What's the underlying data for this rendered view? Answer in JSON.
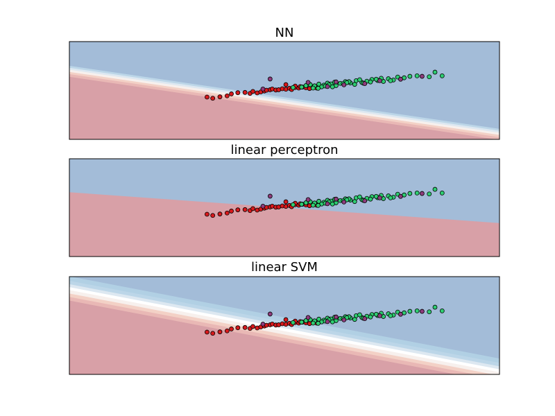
{
  "chart_data": [
    {
      "type": "scatter",
      "title": "NN",
      "xlabel": "",
      "ylabel": "",
      "xlim": [
        -2.0,
        4.0
      ],
      "ylim": [
        -2.0,
        2.0
      ],
      "grid": false,
      "ticks": false,
      "background": {
        "kind": "decision-surface",
        "boundary": {
          "slope": -0.43,
          "intercept": 0.05
        },
        "band_offsets": [
          -0.35,
          -0.24,
          -0.15,
          -0.06,
          0.02,
          0.1,
          0.19,
          1.6
        ],
        "band_colors": [
          "#d8a0a7",
          "#e9b8b5",
          "#f3d1c6",
          "#f7f0ed",
          "#dde8f1",
          "#bcd6e8",
          "#a3bcd8",
          "#a3bcd8"
        ]
      },
      "series": [
        {
          "color": "#d7191c",
          "x": [
            -0.08,
            0.0,
            0.1,
            0.2,
            0.26,
            0.35,
            0.45,
            0.52,
            0.56,
            0.62,
            0.67,
            0.72,
            0.75,
            0.8,
            0.83,
            0.88,
            0.92,
            0.97,
            1.02,
            1.07,
            1.1,
            1.15,
            1.2,
            1.25,
            1.3,
            1.35,
            1.4,
            1.45,
            1.02,
            1.15,
            1.22
          ],
          "y": [
            -0.27,
            -0.32,
            -0.26,
            -0.22,
            -0.14,
            -0.09,
            -0.08,
            -0.12,
            -0.04,
            -0.1,
            -0.06,
            -0.02,
            0.01,
            0.03,
            0.06,
            0.02,
            0.03,
            0.07,
            0.05,
            0.09,
            0.04,
            0.12,
            0.1,
            0.14,
            0.11,
            0.08,
            0.13,
            0.1,
            0.24,
            0.18,
            0.16
          ]
        },
        {
          "color": "#2ecc71",
          "x": [
            1.12,
            1.24,
            1.3,
            1.36,
            1.42,
            1.48,
            1.55,
            1.6,
            1.65,
            1.7,
            1.78,
            1.85,
            1.92,
            2.0,
            2.08,
            2.15,
            2.22,
            2.3,
            2.38,
            2.45,
            2.52,
            2.58,
            2.67,
            2.75,
            2.85,
            3.02,
            3.2,
            1.4,
            1.52,
            1.62,
            1.72,
            1.82,
            1.9,
            1.98,
            2.1,
            2.2,
            2.28,
            1.47,
            1.57,
            1.67,
            1.87,
            2.05,
            2.35,
            2.48,
            3.1
          ],
          "y": [
            0.12,
            0.14,
            0.2,
            0.24,
            0.19,
            0.26,
            0.22,
            0.3,
            0.27,
            0.34,
            0.29,
            0.36,
            0.31,
            0.4,
            0.33,
            0.38,
            0.45,
            0.41,
            0.37,
            0.48,
            0.43,
            0.55,
            0.52,
            0.58,
            0.6,
            0.56,
            0.6,
            0.1,
            0.15,
            0.23,
            0.2,
            0.28,
            0.36,
            0.25,
            0.3,
            0.35,
            0.46,
            0.09,
            0.18,
            0.15,
            0.32,
            0.44,
            0.5,
            0.4,
            0.75
          ]
        },
        {
          "color": "#8e3b7c",
          "x": [
            0.8,
            1.33,
            1.6,
            1.72,
            1.83,
            2.12,
            2.33,
            2.62,
            2.92,
            0.7
          ],
          "y": [
            0.47,
            0.33,
            0.16,
            0.35,
            0.23,
            0.28,
            0.4,
            0.46,
            0.58,
            0.06
          ]
        }
      ]
    },
    {
      "type": "scatter",
      "title": "linear perceptron",
      "xlabel": "",
      "ylabel": "",
      "xlim": [
        -2.0,
        4.0
      ],
      "ylim": [
        -2.0,
        2.0
      ],
      "grid": false,
      "ticks": false,
      "background": {
        "kind": "decision-surface",
        "boundary": {
          "slope": -0.21,
          "intercept": 0.21
        },
        "band_offsets": [
          0.0,
          1.6
        ],
        "band_colors": [
          "#d8a0a7",
          "#a3bcd8"
        ]
      },
      "series": [
        {
          "color": "#d7191c",
          "x": [
            -0.08,
            0.0,
            0.1,
            0.2,
            0.26,
            0.35,
            0.45,
            0.52,
            0.56,
            0.62,
            0.67,
            0.72,
            0.75,
            0.8,
            0.83,
            0.88,
            0.92,
            0.97,
            1.02,
            1.07,
            1.1,
            1.15,
            1.2,
            1.25,
            1.3,
            1.35,
            1.4,
            1.45,
            1.02,
            1.15,
            1.22
          ],
          "y": [
            -0.27,
            -0.32,
            -0.26,
            -0.22,
            -0.14,
            -0.09,
            -0.08,
            -0.12,
            -0.04,
            -0.1,
            -0.06,
            -0.02,
            0.01,
            0.03,
            0.06,
            0.02,
            0.03,
            0.07,
            0.05,
            0.09,
            0.04,
            0.12,
            0.1,
            0.14,
            0.11,
            0.08,
            0.13,
            0.1,
            0.24,
            0.18,
            0.16
          ]
        },
        {
          "color": "#2ecc71",
          "x": [
            1.12,
            1.24,
            1.3,
            1.36,
            1.42,
            1.48,
            1.55,
            1.6,
            1.65,
            1.7,
            1.78,
            1.85,
            1.92,
            2.0,
            2.08,
            2.15,
            2.22,
            2.3,
            2.38,
            2.45,
            2.52,
            2.58,
            2.67,
            2.75,
            2.85,
            3.02,
            3.2,
            1.4,
            1.52,
            1.62,
            1.72,
            1.82,
            1.9,
            1.98,
            2.1,
            2.2,
            2.28,
            1.47,
            1.57,
            1.67,
            1.87,
            2.05,
            2.35,
            2.48,
            3.1
          ],
          "y": [
            0.12,
            0.14,
            0.2,
            0.24,
            0.19,
            0.26,
            0.22,
            0.3,
            0.27,
            0.34,
            0.29,
            0.36,
            0.31,
            0.4,
            0.33,
            0.38,
            0.45,
            0.41,
            0.37,
            0.48,
            0.43,
            0.55,
            0.52,
            0.58,
            0.6,
            0.56,
            0.6,
            0.1,
            0.15,
            0.23,
            0.2,
            0.28,
            0.36,
            0.25,
            0.3,
            0.35,
            0.46,
            0.09,
            0.18,
            0.15,
            0.32,
            0.44,
            0.5,
            0.4,
            0.75
          ]
        },
        {
          "color": "#8e3b7c",
          "x": [
            0.8,
            1.33,
            1.6,
            1.72,
            1.83,
            2.12,
            2.33,
            2.62,
            2.92,
            0.7
          ],
          "y": [
            0.47,
            0.33,
            0.16,
            0.35,
            0.23,
            0.28,
            0.4,
            0.46,
            0.58,
            0.06
          ]
        }
      ]
    },
    {
      "type": "scatter",
      "title": "linear SVM",
      "xlabel": "",
      "ylabel": "",
      "xlim": [
        -2.0,
        4.0
      ],
      "ylim": [
        -2.0,
        2.0
      ],
      "grid": false,
      "ticks": false,
      "background": {
        "kind": "decision-surface",
        "boundary": {
          "slope": -0.56,
          "intercept": 0.45
        },
        "band_offsets": [
          -0.55,
          -0.4,
          -0.26,
          -0.12,
          0.0,
          0.12,
          0.26,
          0.44,
          1.8
        ],
        "band_colors": [
          "#d8a0a7",
          "#e9b8b5",
          "#f3d1c6",
          "#f7f0ed",
          "#ffffff",
          "#dde8f1",
          "#bcd6e8",
          "#b1d0e4",
          "#a3bcd8"
        ]
      },
      "series": [
        {
          "color": "#d7191c",
          "x": [
            -0.08,
            0.0,
            0.1,
            0.2,
            0.26,
            0.35,
            0.45,
            0.52,
            0.56,
            0.62,
            0.67,
            0.72,
            0.75,
            0.8,
            0.83,
            0.88,
            0.92,
            0.97,
            1.02,
            1.07,
            1.1,
            1.15,
            1.2,
            1.25,
            1.3,
            1.35,
            1.4,
            1.45,
            1.02,
            1.15,
            1.22
          ],
          "y": [
            -0.27,
            -0.32,
            -0.26,
            -0.22,
            -0.14,
            -0.09,
            -0.08,
            -0.12,
            -0.04,
            -0.1,
            -0.06,
            -0.02,
            0.01,
            0.03,
            0.06,
            0.02,
            0.03,
            0.07,
            0.05,
            0.09,
            0.04,
            0.12,
            0.1,
            0.14,
            0.11,
            0.08,
            0.13,
            0.1,
            0.24,
            0.18,
            0.16
          ]
        },
        {
          "color": "#2ecc71",
          "x": [
            1.12,
            1.24,
            1.3,
            1.36,
            1.42,
            1.48,
            1.55,
            1.6,
            1.65,
            1.7,
            1.78,
            1.85,
            1.92,
            2.0,
            2.08,
            2.15,
            2.22,
            2.3,
            2.38,
            2.45,
            2.52,
            2.58,
            2.67,
            2.75,
            2.85,
            3.02,
            3.2,
            1.4,
            1.52,
            1.62,
            1.72,
            1.82,
            1.9,
            1.98,
            2.1,
            2.2,
            2.28,
            1.47,
            1.57,
            1.67,
            1.87,
            2.05,
            2.35,
            2.48,
            3.1
          ],
          "y": [
            0.12,
            0.14,
            0.2,
            0.24,
            0.19,
            0.26,
            0.22,
            0.3,
            0.27,
            0.34,
            0.29,
            0.36,
            0.31,
            0.4,
            0.33,
            0.38,
            0.45,
            0.41,
            0.37,
            0.48,
            0.43,
            0.55,
            0.52,
            0.58,
            0.6,
            0.56,
            0.6,
            0.1,
            0.15,
            0.23,
            0.2,
            0.28,
            0.36,
            0.25,
            0.3,
            0.35,
            0.46,
            0.09,
            0.18,
            0.15,
            0.32,
            0.44,
            0.5,
            0.4,
            0.75
          ]
        },
        {
          "color": "#8e3b7c",
          "x": [
            0.8,
            1.33,
            1.6,
            1.72,
            1.83,
            2.12,
            2.33,
            2.62,
            2.92,
            0.7
          ],
          "y": [
            0.47,
            0.33,
            0.16,
            0.35,
            0.23,
            0.28,
            0.4,
            0.46,
            0.58,
            0.06
          ]
        }
      ]
    }
  ]
}
